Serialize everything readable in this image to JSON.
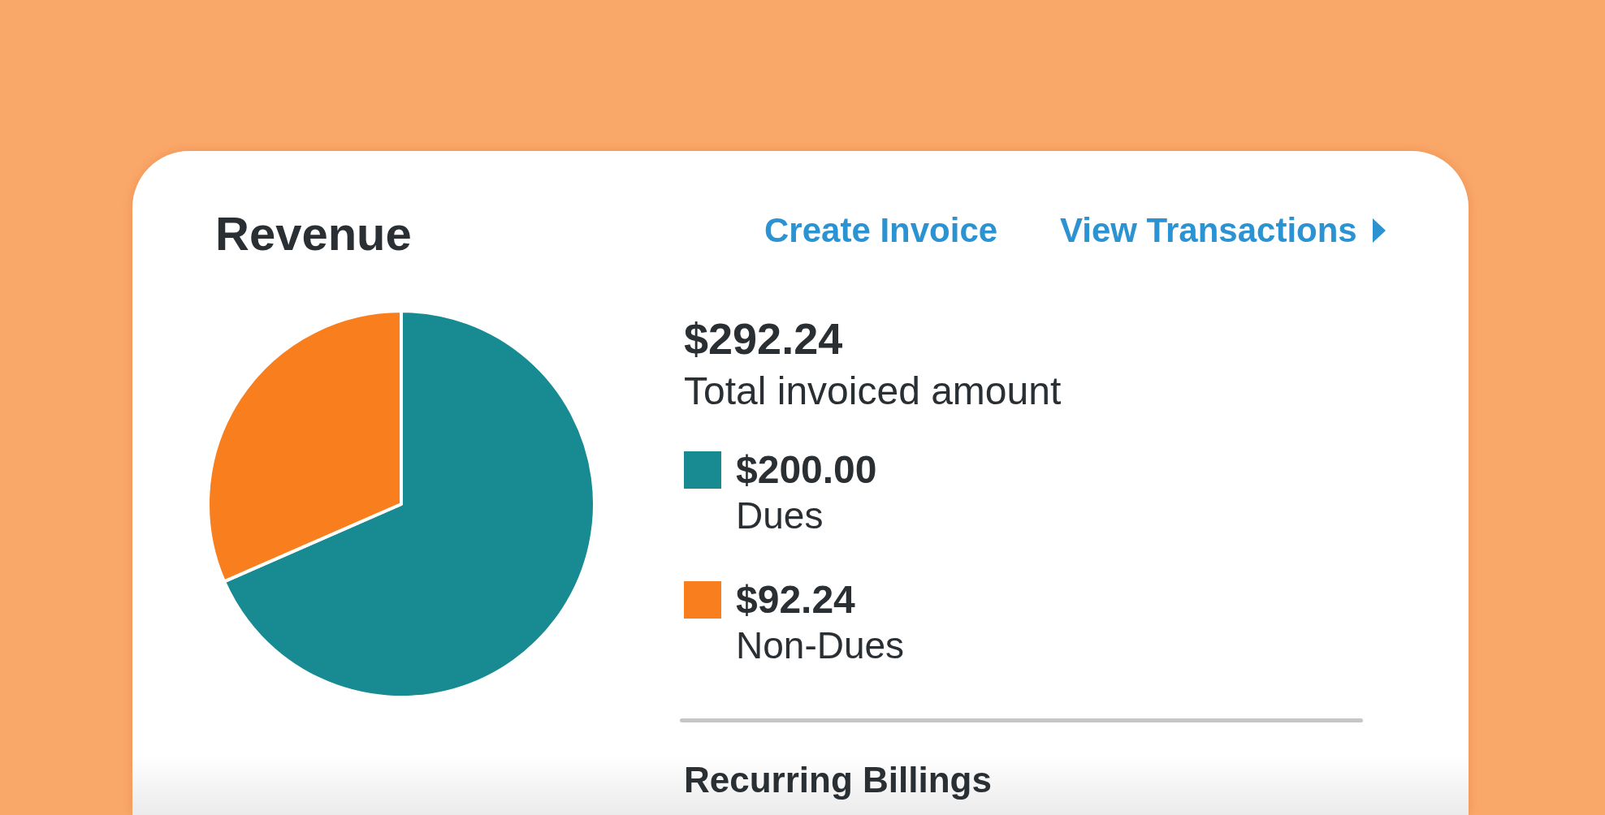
{
  "chart_data": {
    "type": "pie",
    "title": "Revenue",
    "categories": [
      "Dues",
      "Non-Dues"
    ],
    "values": [
      200.0,
      92.24
    ],
    "colors": [
      "#188a91",
      "#f97f1e"
    ],
    "value_labels": [
      "$200.00",
      "$92.24"
    ],
    "legend": "right",
    "annotations": [
      "$292.24",
      "Total invoiced amount",
      "Create Invoice",
      "View Transactions",
      "Recurring Billings"
    ]
  }
}
